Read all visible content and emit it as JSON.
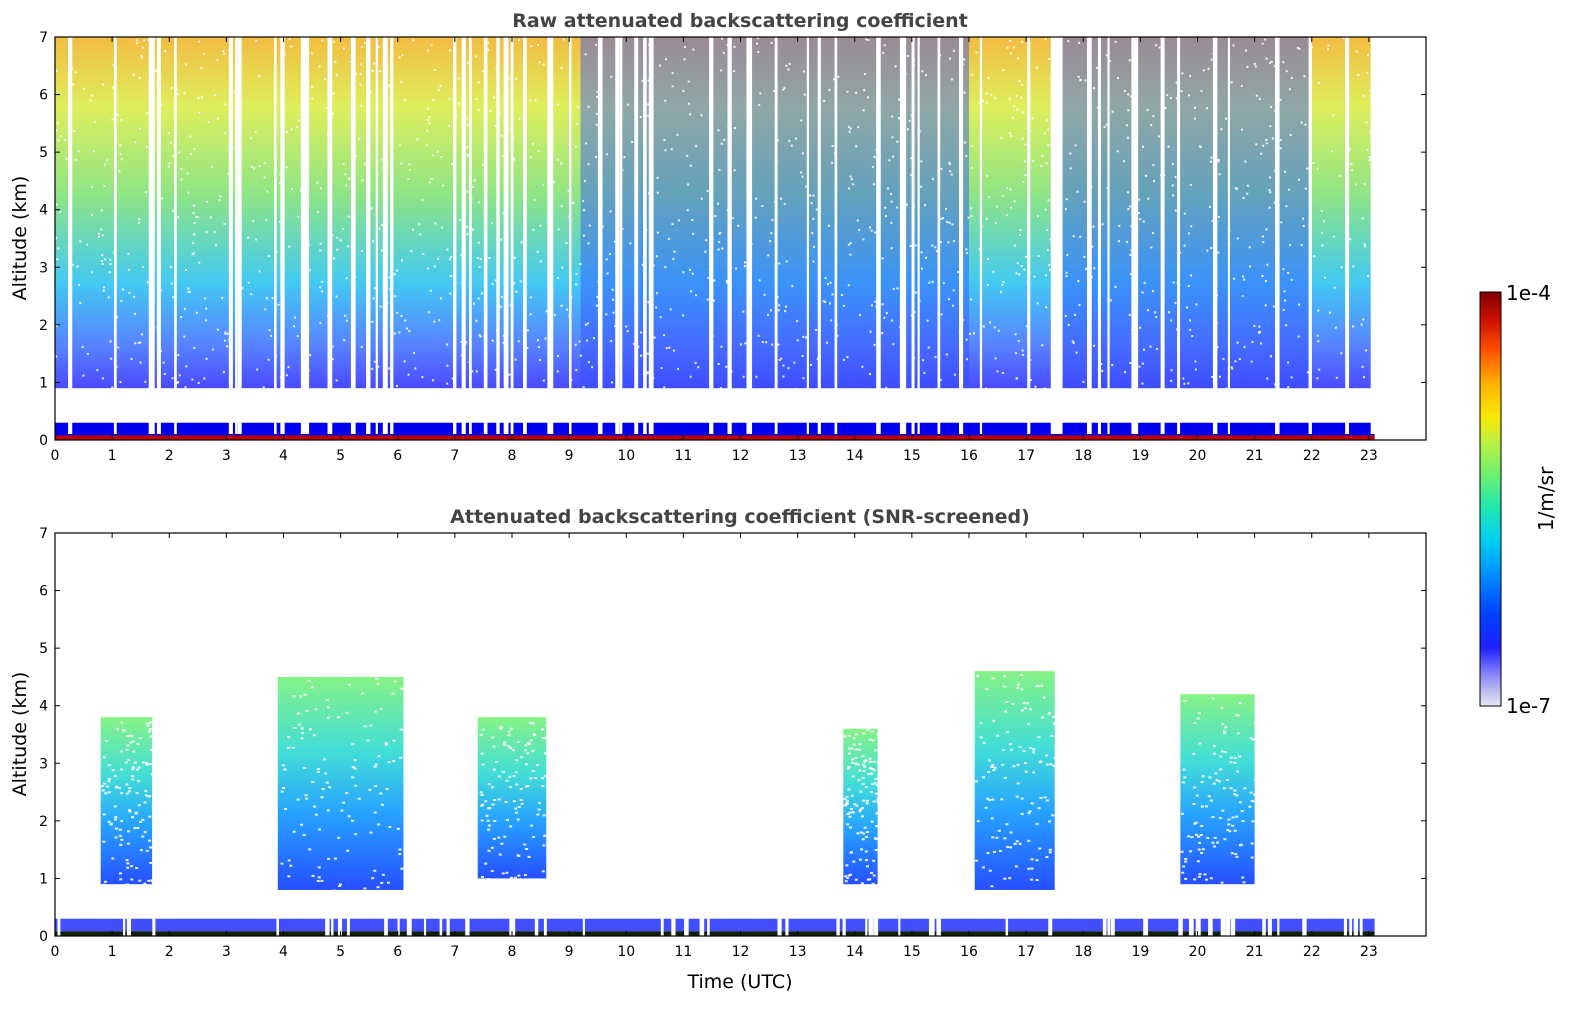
{
  "chart_data": [
    {
      "type": "heatmap",
      "title": "Raw attenuated backscattering coefficient",
      "ylabel": "Altitude (km)",
      "xlabel": "",
      "xlim": [
        0,
        24
      ],
      "ylim": [
        0,
        7
      ],
      "xticks": [
        "0",
        "1",
        "2",
        "3",
        "4",
        "5",
        "6",
        "7",
        "8",
        "9",
        "10",
        "11",
        "12",
        "13",
        "14",
        "15",
        "16",
        "17",
        "18",
        "19",
        "20",
        "21",
        "22",
        "23"
      ],
      "yticks": [
        "0",
        "1",
        "2",
        "3",
        "4",
        "5",
        "6",
        "7"
      ],
      "data_end_hour": 23.1,
      "surface_layer_top_km": 0.3,
      "dense_noise_region_km": [
        0.9,
        7
      ]
    },
    {
      "type": "heatmap",
      "title": "Attenuated backscattering coefficient (SNR-screened)",
      "ylabel": "Altitude (km)",
      "xlabel": "Time (UTC)",
      "xlim": [
        0,
        24
      ],
      "ylim": [
        0,
        7
      ],
      "xticks": [
        "0",
        "1",
        "2",
        "3",
        "4",
        "5",
        "6",
        "7",
        "8",
        "9",
        "10",
        "11",
        "12",
        "13",
        "14",
        "15",
        "16",
        "17",
        "18",
        "19",
        "20",
        "21",
        "22",
        "23"
      ],
      "yticks": [
        "0",
        "1",
        "2",
        "3",
        "4",
        "5",
        "6",
        "7"
      ],
      "cloud_layers": [
        {
          "start_hour": 0.8,
          "end_hour": 1.7,
          "base_km": 0.9,
          "top_km": 3.8
        },
        {
          "start_hour": 3.9,
          "end_hour": 6.1,
          "base_km": 0.8,
          "top_km": 4.5
        },
        {
          "start_hour": 7.4,
          "end_hour": 8.6,
          "base_km": 1.0,
          "top_km": 3.8
        },
        {
          "start_hour": 13.8,
          "end_hour": 14.4,
          "base_km": 0.9,
          "top_km": 3.6
        },
        {
          "start_hour": 16.1,
          "end_hour": 17.5,
          "base_km": 0.8,
          "top_km": 4.6
        },
        {
          "start_hour": 19.7,
          "end_hour": 21.0,
          "base_km": 0.9,
          "top_km": 4.2
        }
      ]
    }
  ],
  "colorbar": {
    "label": "1/m/sr",
    "min_label": "1e-7",
    "max_label": "1e-4",
    "scale": "log",
    "colors": [
      "#e6e6f5",
      "#b8b8f0",
      "#8080ff",
      "#3030ff",
      "#0000ff",
      "#0040ff",
      "#0080ff",
      "#00b0ff",
      "#00d8e8",
      "#20e8b0",
      "#60f080",
      "#a0f050",
      "#d8f030",
      "#f8e800",
      "#ffc000",
      "#ff9000",
      "#ff5000",
      "#e82000",
      "#c00000",
      "#800000"
    ]
  }
}
